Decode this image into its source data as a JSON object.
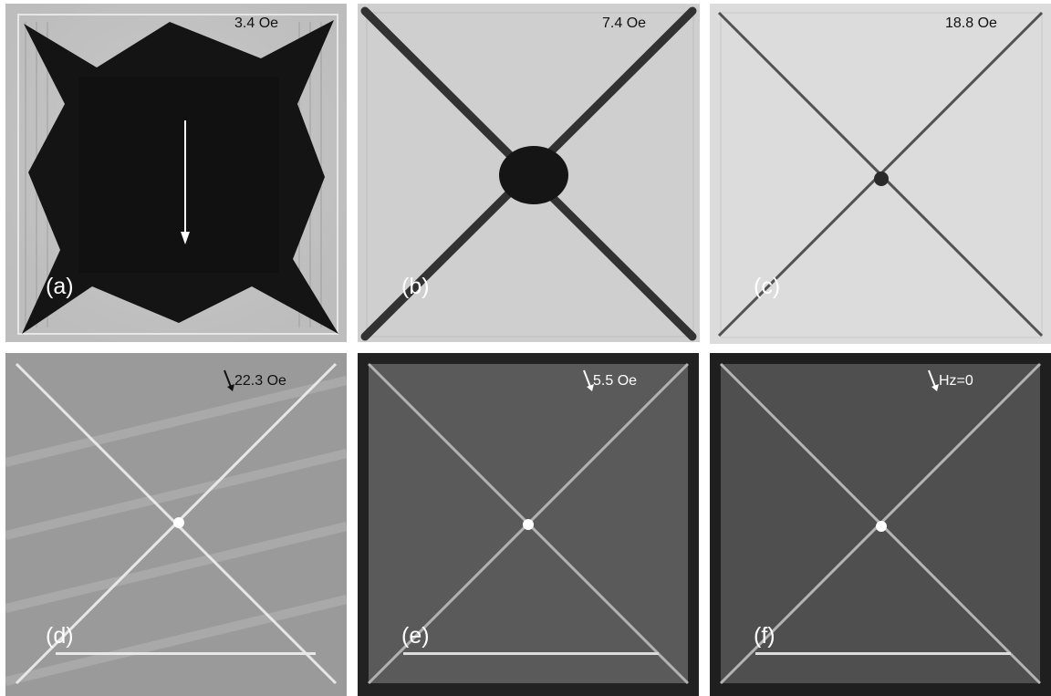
{
  "panels": [
    {
      "label": "(a)",
      "field": "3.4 Oe",
      "scheme": "light",
      "arrow": "down-long"
    },
    {
      "label": "(b)",
      "field": "7.4 Oe",
      "scheme": "light"
    },
    {
      "label": "(c)",
      "field": "18.8 Oe",
      "scheme": "light"
    },
    {
      "label": "(d)",
      "field": "22.3 Oe",
      "scheme": "gray",
      "arrow": "short"
    },
    {
      "label": "(e)",
      "field": "5.5 Oe",
      "scheme": "dark",
      "arrow": "short"
    },
    {
      "label": "(f)",
      "field": "Hz=0",
      "scheme": "dark",
      "arrow": "short"
    }
  ],
  "colors": {
    "background": "#ffffff",
    "dark_flux": "#111111",
    "light_bg": "#d8d8d8",
    "bright_line": "#f2f2f2"
  }
}
